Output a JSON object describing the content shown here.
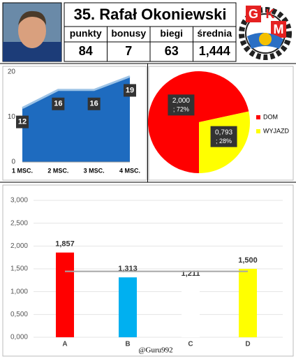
{
  "header": {
    "title": "35. Rafał Okoniewski",
    "columns": [
      "punkty",
      "bonusy",
      "biegi",
      "średnia"
    ],
    "row": [
      "84",
      "7",
      "63",
      "1,444"
    ],
    "logo": [
      "G",
      "K",
      "M"
    ]
  },
  "chart_data": [
    {
      "type": "area",
      "categories": [
        "1 MSC.",
        "2 MSC.",
        "3 MSC.",
        "4 MSC."
      ],
      "values": [
        12,
        16,
        16,
        19
      ],
      "color": "#1e6bbf",
      "ylim": [
        0,
        20
      ],
      "yticks": [
        0,
        10,
        20
      ]
    },
    {
      "type": "pie",
      "series": [
        {
          "name": "DOM",
          "color": "#ff0000"
        },
        {
          "name": "WYJAZD",
          "color": "#ffff00"
        }
      ],
      "values": [
        2.0,
        0.793
      ],
      "value_labels": [
        "2,000",
        "0,793"
      ],
      "percents": [
        72,
        28
      ],
      "percent_labels": [
        "; 72%",
        "; 28%"
      ]
    },
    {
      "type": "bar",
      "categories": [
        "A",
        "B",
        "C",
        "D"
      ],
      "values": [
        1.857,
        1.313,
        1.211,
        1.5
      ],
      "value_labels": [
        "1,857",
        "1,313",
        "1,211",
        "1,500"
      ],
      "colors": [
        "#ff0000",
        "#00b0f0",
        "#ffffff",
        "#ffff00"
      ],
      "line": {
        "values": [
          1.444,
          1.444,
          1.444,
          1.444
        ],
        "color": "#a6a6a6"
      },
      "ylim": [
        0,
        3
      ],
      "yticks": [
        {
          "value": 0,
          "label": "0,000"
        },
        {
          "value": 0.5,
          "label": "0,500"
        },
        {
          "value": 1,
          "label": "1,000"
        },
        {
          "value": 1.5,
          "label": "1,500"
        },
        {
          "value": 2,
          "label": "2,000"
        },
        {
          "value": 2.5,
          "label": "2,500"
        },
        {
          "value": 3,
          "label": "3,000"
        }
      ],
      "grid": true,
      "footer": "@Guru992"
    }
  ]
}
